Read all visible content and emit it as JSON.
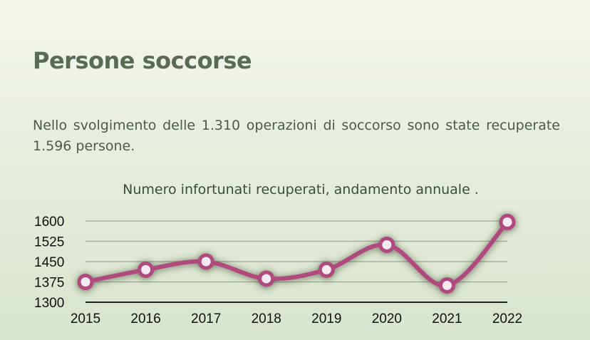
{
  "heading": "Persone soccorse",
  "description": "Nello svolgimento delle 1.310 operazioni di soccorso sono state recuperate 1.596 persone.",
  "colors": {
    "line": "#b04a7e",
    "marker_fill": "#f4eaf0",
    "grid": "#a9b1a0",
    "axis": "#222222"
  },
  "chart_data": {
    "type": "line",
    "title": "Numero infortunati recuperati, andamento annuale .",
    "categories": [
      "2015",
      "2016",
      "2017",
      "2018",
      "2019",
      "2020",
      "2021",
      "2022"
    ],
    "series": [
      {
        "values": [
          1375,
          1420,
          1450,
          1387,
          1420,
          1512,
          1362,
          1596
        ]
      }
    ],
    "yticks": [
      "1300",
      "1375",
      "1450",
      "1525",
      "1600"
    ],
    "ylim": [
      1300,
      1600
    ],
    "grid": true,
    "legend": "none"
  }
}
